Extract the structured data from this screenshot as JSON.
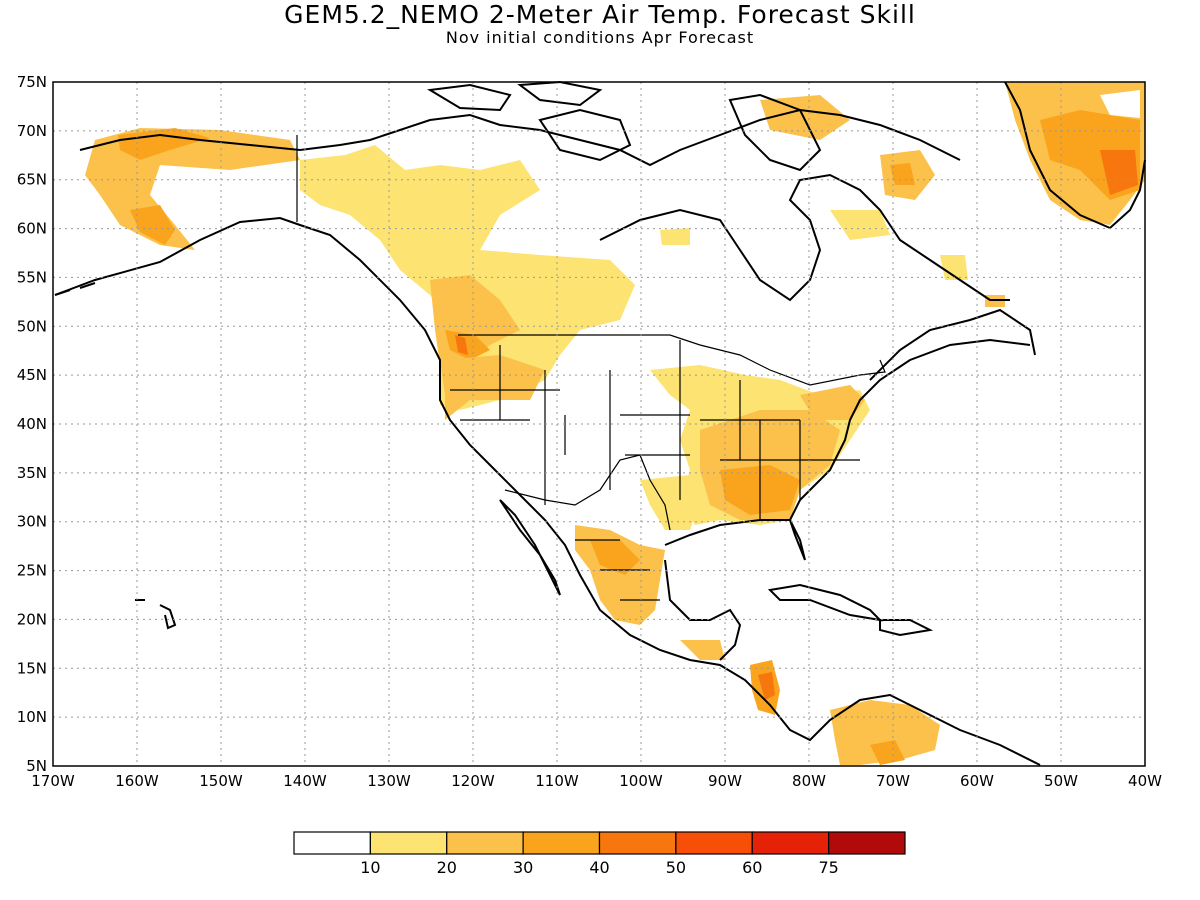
{
  "title": "GEM5.2_NEMO 2-Meter Air Temp. Forecast Skill",
  "subtitle": "Nov initial conditions  Apr Forecast",
  "map": {
    "lat_labels": [
      "75N",
      "70N",
      "65N",
      "60N",
      "55N",
      "50N",
      "45N",
      "40N",
      "35N",
      "30N",
      "25N",
      "20N",
      "15N",
      "10N",
      "5N"
    ],
    "lon_labels": [
      "170W",
      "160W",
      "150W",
      "140W",
      "130W",
      "120W",
      "110W",
      "100W",
      "90W",
      "80W",
      "70W",
      "60W",
      "50W",
      "40W"
    ],
    "lat_range": [
      5,
      75
    ],
    "lon_range": [
      -170,
      -40
    ],
    "grid": true
  },
  "colorbar": {
    "colors": [
      "#ffffff",
      "#fde372",
      "#fbc14b",
      "#f9a41c",
      "#f7760d",
      "#f74e08",
      "#e52207",
      "#b00a0a"
    ],
    "labels": [
      "10",
      "20",
      "30",
      "40",
      "50",
      "60",
      "75"
    ]
  }
}
